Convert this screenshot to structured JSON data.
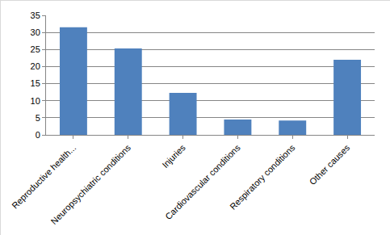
{
  "chart_data": {
    "type": "bar",
    "categories": [
      "Reproductive health...",
      "Neuropsychiatric conditions",
      "Injuries",
      "Cardiovascular conditions",
      "Respiratory conditions",
      "Other causes"
    ],
    "values": [
      31.5,
      25.3,
      12.3,
      4.5,
      4.2,
      22
    ],
    "color": "#4f81bd",
    "ylim": [
      0,
      35
    ],
    "yticks": [
      0,
      5,
      10,
      15,
      20,
      25,
      30,
      35
    ],
    "grid": true
  }
}
